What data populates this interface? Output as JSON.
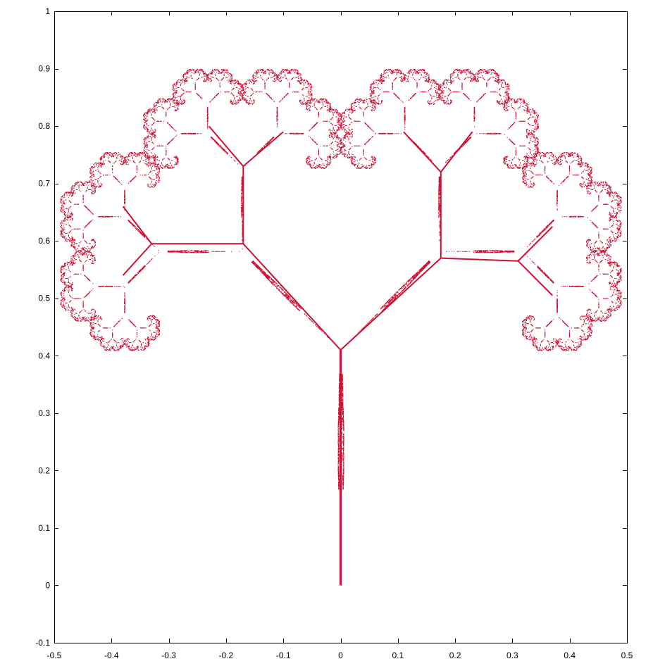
{
  "chart_data": {
    "type": "scatter",
    "title": "",
    "xlabel": "",
    "ylabel": "",
    "xlim": [
      -0.5,
      0.5
    ],
    "ylim": [
      -0.1,
      1
    ],
    "xticks": [
      -0.5,
      -0.4,
      -0.3,
      -0.2,
      -0.1,
      0,
      0.1,
      0.2,
      0.3,
      0.4,
      0.5
    ],
    "yticks": [
      -0.1,
      0,
      0.1,
      0.2,
      0.3,
      0.4,
      0.5,
      0.6,
      0.7,
      0.8,
      0.9,
      1
    ],
    "xtick_labels": [
      "-0.5",
      "-0.4",
      "-0.3",
      "-0.2",
      "-0.1",
      "0",
      "0.1",
      "0.2",
      "0.3",
      "0.4",
      "0.5"
    ],
    "ytick_labels": [
      "-0.1",
      "0",
      "0.1",
      "0.2",
      "0.3",
      "0.4",
      "0.5",
      "0.6",
      "0.7",
      "0.8",
      "0.9",
      "1"
    ],
    "grid": false,
    "legend": "none",
    "point_color": "#cc1133",
    "series": [
      {
        "description_shape": "fractal tree",
        "trunk": [
          [
            0,
            0
          ],
          [
            0,
            0.41
          ]
        ],
        "branches": [
          [
            [
              0,
              0.41
            ],
            [
              -0.17,
              0.595
            ]
          ],
          [
            [
              0,
              0.41
            ],
            [
              0.175,
              0.57
            ]
          ],
          [
            [
              -0.17,
              0.595
            ],
            [
              -0.33,
              0.595
            ]
          ],
          [
            [
              -0.17,
              0.595
            ],
            [
              -0.17,
              0.73
            ]
          ],
          [
            [
              0.175,
              0.57
            ],
            [
              0.175,
              0.72
            ]
          ],
          [
            [
              0.175,
              0.57
            ],
            [
              0.31,
              0.565
            ]
          ],
          [
            [
              -0.33,
              0.595
            ],
            [
              -0.38,
              0.54
            ]
          ],
          [
            [
              -0.33,
              0.595
            ],
            [
              -0.38,
              0.66
            ]
          ],
          [
            [
              -0.17,
              0.73
            ],
            [
              -0.23,
              0.8
            ]
          ],
          [
            [
              -0.17,
              0.73
            ],
            [
              -0.1,
              0.79
            ]
          ],
          [
            [
              0.175,
              0.72
            ],
            [
              0.23,
              0.79
            ]
          ],
          [
            [
              0.175,
              0.72
            ],
            [
              0.11,
              0.79
            ]
          ],
          [
            [
              0.31,
              0.565
            ],
            [
              0.37,
              0.505
            ]
          ],
          [
            [
              0.31,
              0.565
            ],
            [
              0.37,
              0.625
            ]
          ]
        ]
      }
    ]
  }
}
